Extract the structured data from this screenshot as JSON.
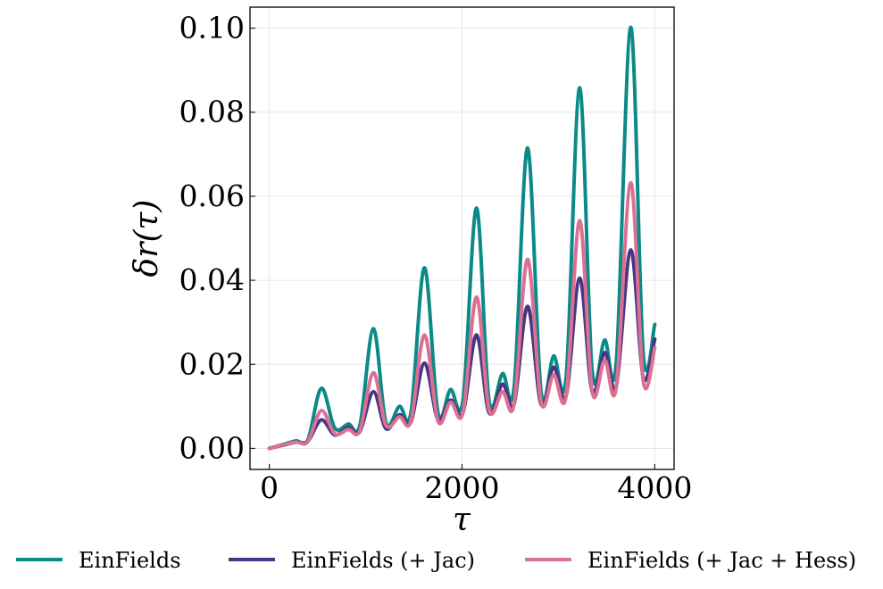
{
  "chart_data": {
    "type": "line",
    "xlabel": "τ",
    "ylabel": "δr(τ)",
    "xlim": [
      -200,
      4200
    ],
    "ylim": [
      -0.005,
      0.105
    ],
    "xticks": [
      0,
      2000,
      4000
    ],
    "xtick_labels": [
      "0",
      "2000",
      "4000"
    ],
    "yticks": [
      0.0,
      0.02,
      0.04,
      0.06,
      0.08,
      0.1
    ],
    "ytick_labels": [
      "0.00",
      "0.02",
      "0.04",
      "0.06",
      "0.08",
      "0.10"
    ],
    "grid": true,
    "legend_position": "bottom",
    "series": [
      {
        "name": "EinFields",
        "color": "#0b8a87",
        "points": [
          [
            0,
            0
          ],
          [
            150,
            0.001
          ],
          [
            280,
            0.0018
          ],
          [
            400,
            0.002
          ],
          [
            540,
            0.0143
          ],
          [
            680,
            0.0048
          ],
          [
            820,
            0.0058
          ],
          [
            940,
            0.0055
          ],
          [
            1080,
            0.0285
          ],
          [
            1210,
            0.0062
          ],
          [
            1350,
            0.01
          ],
          [
            1470,
            0.0085
          ],
          [
            1610,
            0.043
          ],
          [
            1750,
            0.0085
          ],
          [
            1880,
            0.014
          ],
          [
            2010,
            0.0115
          ],
          [
            2150,
            0.0572
          ],
          [
            2280,
            0.0115
          ],
          [
            2420,
            0.0178
          ],
          [
            2540,
            0.0145
          ],
          [
            2680,
            0.0715
          ],
          [
            2820,
            0.0135
          ],
          [
            2950,
            0.022
          ],
          [
            3080,
            0.017
          ],
          [
            3220,
            0.0858
          ],
          [
            3350,
            0.0185
          ],
          [
            3480,
            0.0258
          ],
          [
            3600,
            0.0205
          ],
          [
            3750,
            0.1002
          ],
          [
            3880,
            0.0225
          ],
          [
            4000,
            0.0295
          ]
        ]
      },
      {
        "name": "EinFields (+ Jac)",
        "color": "#4a3585",
        "points": [
          [
            0,
            0
          ],
          [
            150,
            0.0008
          ],
          [
            280,
            0.0015
          ],
          [
            400,
            0.0017
          ],
          [
            540,
            0.0068
          ],
          [
            680,
            0.0032
          ],
          [
            820,
            0.005
          ],
          [
            940,
            0.004
          ],
          [
            1080,
            0.0135
          ],
          [
            1210,
            0.0047
          ],
          [
            1350,
            0.008
          ],
          [
            1470,
            0.0063
          ],
          [
            1610,
            0.0203
          ],
          [
            1750,
            0.0068
          ],
          [
            1880,
            0.0115
          ],
          [
            2010,
            0.0085
          ],
          [
            2150,
            0.027
          ],
          [
            2280,
            0.0085
          ],
          [
            2420,
            0.0153
          ],
          [
            2540,
            0.0105
          ],
          [
            2680,
            0.0338
          ],
          [
            2820,
            0.0105
          ],
          [
            2950,
            0.0193
          ],
          [
            3080,
            0.0125
          ],
          [
            3220,
            0.0405
          ],
          [
            3350,
            0.0135
          ],
          [
            3480,
            0.0228
          ],
          [
            3600,
            0.0148
          ],
          [
            3750,
            0.0472
          ],
          [
            3880,
            0.0168
          ],
          [
            4000,
            0.026
          ]
        ]
      },
      {
        "name": "EinFields (+ Jac + Hess)",
        "color": "#db7093",
        "points": [
          [
            0,
            0
          ],
          [
            150,
            0.0009
          ],
          [
            280,
            0.0015
          ],
          [
            400,
            0.0016
          ],
          [
            540,
            0.009
          ],
          [
            680,
            0.0035
          ],
          [
            820,
            0.0045
          ],
          [
            940,
            0.0042
          ],
          [
            1080,
            0.018
          ],
          [
            1210,
            0.0055
          ],
          [
            1350,
            0.0075
          ],
          [
            1470,
            0.0065
          ],
          [
            1610,
            0.027
          ],
          [
            1750,
            0.0065
          ],
          [
            1880,
            0.011
          ],
          [
            2010,
            0.0085
          ],
          [
            2150,
            0.036
          ],
          [
            2280,
            0.0092
          ],
          [
            2420,
            0.0135
          ],
          [
            2540,
            0.0105
          ],
          [
            2680,
            0.045
          ],
          [
            2820,
            0.011
          ],
          [
            2950,
            0.0175
          ],
          [
            3080,
            0.0125
          ],
          [
            3220,
            0.0542
          ],
          [
            3350,
            0.0135
          ],
          [
            3480,
            0.021
          ],
          [
            3600,
            0.0145
          ],
          [
            3750,
            0.0632
          ],
          [
            3880,
            0.016
          ],
          [
            4000,
            0.024
          ]
        ]
      }
    ]
  }
}
